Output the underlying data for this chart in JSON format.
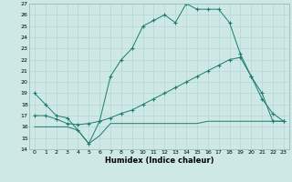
{
  "xlabel": "Humidex (Indice chaleur)",
  "bg_color": "#cde8e5",
  "line_color": "#1e7b70",
  "grid_color": "#aed4d0",
  "xlim": [
    -0.5,
    23.5
  ],
  "ylim": [
    14,
    27
  ],
  "xticks": [
    0,
    1,
    2,
    3,
    4,
    5,
    6,
    7,
    8,
    9,
    10,
    11,
    12,
    13,
    14,
    15,
    16,
    17,
    18,
    19,
    20,
    21,
    22,
    23
  ],
  "yticks": [
    14,
    15,
    16,
    17,
    18,
    19,
    20,
    21,
    22,
    23,
    24,
    25,
    26,
    27
  ],
  "line1_x": [
    0,
    1,
    2,
    3,
    4,
    5,
    6,
    7,
    8,
    9,
    10,
    11,
    12,
    13,
    14,
    15,
    16,
    17,
    18,
    19,
    20,
    21,
    22,
    23
  ],
  "line1_y": [
    19.0,
    18.0,
    17.0,
    16.8,
    15.7,
    14.5,
    16.5,
    20.5,
    22.0,
    23.0,
    25.0,
    25.5,
    26.0,
    25.3,
    27.0,
    26.5,
    26.5,
    26.5,
    25.3,
    22.5,
    20.5,
    18.5,
    17.2,
    16.5
  ],
  "line2_x": [
    0,
    1,
    2,
    3,
    4,
    5,
    6,
    7,
    8,
    9,
    10,
    11,
    12,
    13,
    14,
    15,
    16,
    17,
    18,
    19,
    20,
    21,
    22,
    23
  ],
  "line2_y": [
    17.0,
    17.0,
    16.7,
    16.3,
    16.2,
    16.3,
    16.5,
    16.8,
    17.2,
    17.5,
    18.0,
    18.5,
    19.0,
    19.5,
    20.0,
    20.5,
    21.0,
    21.5,
    22.0,
    22.2,
    20.5,
    19.0,
    16.5,
    16.5
  ],
  "line3_x": [
    0,
    1,
    2,
    3,
    4,
    5,
    6,
    7,
    8,
    9,
    10,
    11,
    12,
    13,
    14,
    15,
    16,
    17,
    18,
    19,
    20,
    21,
    22,
    23
  ],
  "line3_y": [
    16.0,
    16.0,
    16.0,
    16.0,
    15.7,
    14.5,
    15.2,
    16.3,
    16.3,
    16.3,
    16.3,
    16.3,
    16.3,
    16.3,
    16.3,
    16.3,
    16.5,
    16.5,
    16.5,
    16.5,
    16.5,
    16.5,
    16.5,
    16.5
  ],
  "xlabel_fontsize": 6,
  "tick_fontsize": 4.5
}
